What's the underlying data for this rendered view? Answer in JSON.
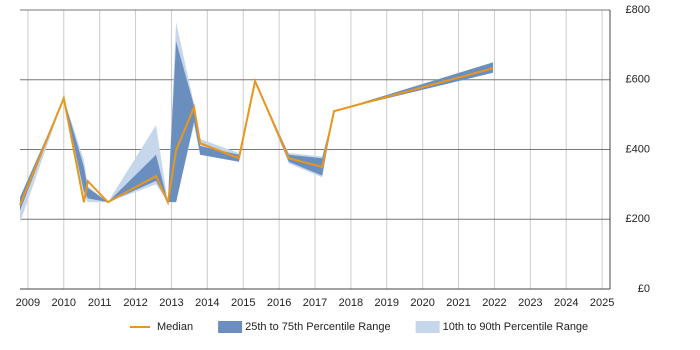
{
  "chart_data": {
    "type": "line",
    "x": [
      2008.78,
      2010,
      2010.56,
      2010.67,
      2011.23,
      2012.57,
      2012.9,
      2013.13,
      2013.63,
      2013.8,
      2014.88,
      2015.33,
      2016.27,
      2017.2,
      2017.53,
      2021.96
    ],
    "series": [
      {
        "name": "10th to 90th Percentile Range",
        "color": "#c6d7eb",
        "low": [
          190,
          547,
          270,
          249,
          249,
          300,
          249,
          249,
          470,
          385,
          365,
          596,
          360,
          320,
          510,
          620
        ],
        "high": [
          265,
          547,
          370,
          295,
          249,
          470,
          249,
          765,
          530,
          430,
          390,
          596,
          390,
          380,
          510,
          650
        ]
      },
      {
        "name": "25th to 75th Percentile Range",
        "color": "#6a8fbf",
        "low": [
          225,
          547,
          280,
          260,
          249,
          310,
          249,
          249,
          480,
          385,
          365,
          596,
          365,
          325,
          510,
          620
        ],
        "high": [
          262,
          547,
          350,
          290,
          249,
          385,
          249,
          710,
          525,
          410,
          385,
          596,
          385,
          375,
          510,
          650
        ]
      },
      {
        "name": "Median",
        "color": "#e8961c",
        "values": [
          241,
          547,
          249,
          309,
          249,
          324,
          249,
          398,
          521,
          418,
          375,
          596,
          375,
          350,
          510,
          633
        ]
      }
    ],
    "xlim": [
      2008.78,
      2025.22
    ],
    "xticks": [
      2009,
      2010,
      2011,
      2012,
      2013,
      2014,
      2015,
      2016,
      2017,
      2018,
      2019,
      2020,
      2021,
      2022,
      2023,
      2024,
      2025
    ],
    "ylim": [
      0,
      800
    ],
    "yticks": [
      {
        "value": 0,
        "label": "£0"
      },
      {
        "value": 200,
        "label": "£200"
      },
      {
        "value": 400,
        "label": "£400"
      },
      {
        "value": 600,
        "label": "£600"
      },
      {
        "value": 800,
        "label": "£800"
      }
    ],
    "grid": true,
    "legend": "bottom"
  }
}
